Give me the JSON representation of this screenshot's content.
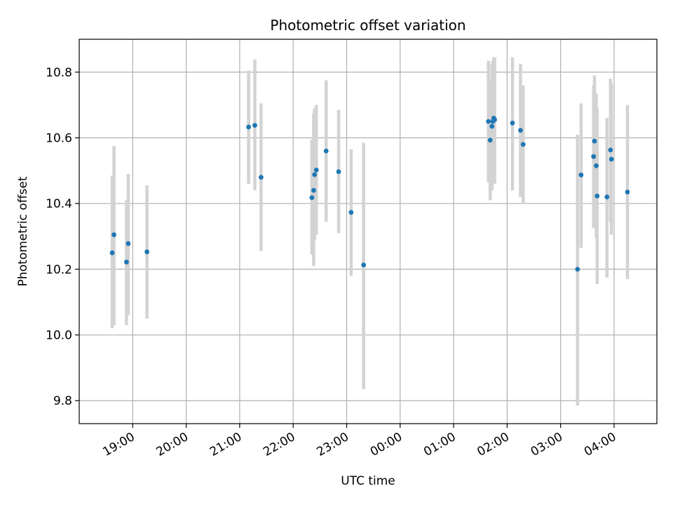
{
  "chart_data": {
    "type": "scatter",
    "title": "Photometric offset variation",
    "xlabel": "UTC time",
    "ylabel": "Photometric offset",
    "x_ticks": [
      "19:00",
      "20:00",
      "21:00",
      "22:00",
      "23:00",
      "00:00",
      "01:00",
      "02:00",
      "03:00",
      "04:00"
    ],
    "y_ticks": [
      "9.8",
      "10.0",
      "10.2",
      "10.4",
      "10.6",
      "10.8"
    ],
    "y_tick_values": [
      9.8,
      10.0,
      10.2,
      10.4,
      10.6,
      10.8
    ],
    "xlim_hours": [
      18.0,
      4.8
    ],
    "ylim": [
      9.73,
      10.9
    ],
    "grid": true,
    "colors": {
      "points": "#1f77b4",
      "errorbars": "#d3d3d3",
      "grid": "#b0b0b0"
    },
    "points": [
      {
        "time": "18:37",
        "y": 10.25,
        "err_low": 10.02,
        "err_high": 10.485
      },
      {
        "time": "18:39",
        "y": 10.305,
        "err_low": 10.03,
        "err_high": 10.575
      },
      {
        "time": "18:53",
        "y": 10.222,
        "err_low": 10.03,
        "err_high": 10.41
      },
      {
        "time": "18:55",
        "y": 10.278,
        "err_low": 10.06,
        "err_high": 10.49
      },
      {
        "time": "19:16",
        "y": 10.253,
        "err_low": 10.05,
        "err_high": 10.455
      },
      {
        "time": "21:10",
        "y": 10.633,
        "err_low": 10.46,
        "err_high": 10.805
      },
      {
        "time": "21:17",
        "y": 10.638,
        "err_low": 10.44,
        "err_high": 10.838
      },
      {
        "time": "21:24",
        "y": 10.48,
        "err_low": 10.255,
        "err_high": 10.705
      },
      {
        "time": "22:21",
        "y": 10.418,
        "err_low": 10.245,
        "err_high": 10.595
      },
      {
        "time": "22:23",
        "y": 10.44,
        "err_low": 10.21,
        "err_high": 10.675
      },
      {
        "time": "22:24",
        "y": 10.488,
        "err_low": 10.29,
        "err_high": 10.69
      },
      {
        "time": "22:26",
        "y": 10.502,
        "err_low": 10.305,
        "err_high": 10.7
      },
      {
        "time": "22:37",
        "y": 10.56,
        "err_low": 10.345,
        "err_high": 10.775
      },
      {
        "time": "22:51",
        "y": 10.497,
        "err_low": 10.31,
        "err_high": 10.685
      },
      {
        "time": "23:05",
        "y": 10.373,
        "err_low": 10.18,
        "err_high": 10.565
      },
      {
        "time": "23:19",
        "y": 10.213,
        "err_low": 9.835,
        "err_high": 10.585
      },
      {
        "time": "01:39",
        "y": 10.65,
        "err_low": 10.465,
        "err_high": 10.835
      },
      {
        "time": "01:41",
        "y": 10.593,
        "err_low": 10.41,
        "err_high": 10.775
      },
      {
        "time": "01:43",
        "y": 10.635,
        "err_low": 10.44,
        "err_high": 10.825
      },
      {
        "time": "01:44",
        "y": 10.65,
        "err_low": 10.46,
        "err_high": 10.835
      },
      {
        "time": "01:45",
        "y": 10.66,
        "err_low": 10.47,
        "err_high": 10.845
      },
      {
        "time": "01:46",
        "y": 10.655,
        "err_low": 10.46,
        "err_high": 10.845
      },
      {
        "time": "02:06",
        "y": 10.645,
        "err_low": 10.44,
        "err_high": 10.845
      },
      {
        "time": "02:15",
        "y": 10.623,
        "err_low": 10.42,
        "err_high": 10.825
      },
      {
        "time": "02:18",
        "y": 10.58,
        "err_low": 10.4,
        "err_high": 10.76
      },
      {
        "time": "03:19",
        "y": 10.2,
        "err_low": 9.785,
        "err_high": 10.61
      },
      {
        "time": "03:23",
        "y": 10.487,
        "err_low": 10.265,
        "err_high": 10.705
      },
      {
        "time": "03:37",
        "y": 10.543,
        "err_low": 10.325,
        "err_high": 10.76
      },
      {
        "time": "03:38",
        "y": 10.59,
        "err_low": 10.385,
        "err_high": 10.79
      },
      {
        "time": "03:40",
        "y": 10.515,
        "err_low": 10.295,
        "err_high": 10.735
      },
      {
        "time": "03:41",
        "y": 10.423,
        "err_low": 10.155,
        "err_high": 10.69
      },
      {
        "time": "03:52",
        "y": 10.42,
        "err_low": 10.175,
        "err_high": 10.66
      },
      {
        "time": "03:56",
        "y": 10.563,
        "err_low": 10.345,
        "err_high": 10.78
      },
      {
        "time": "03:57",
        "y": 10.535,
        "err_low": 10.305,
        "err_high": 10.765
      },
      {
        "time": "04:15",
        "y": 10.435,
        "err_low": 10.17,
        "err_high": 10.7
      }
    ]
  }
}
